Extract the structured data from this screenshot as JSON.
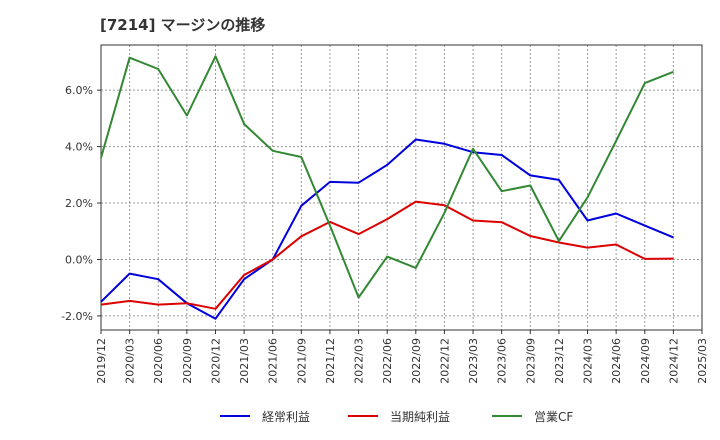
{
  "chart_data": {
    "type": "line",
    "title": "[7214]  マージンの推移",
    "xlabel": "",
    "ylabel": "",
    "ylim": [
      -2.5,
      7.6
    ],
    "y_ticks": [
      -2.0,
      0.0,
      2.0,
      4.0,
      6.0
    ],
    "y_tick_labels": [
      "-2.0%",
      "0.0%",
      "2.0%",
      "4.0%",
      "6.0%"
    ],
    "grid": true,
    "legend_position": "bottom",
    "categories": [
      "2019/12",
      "2020/03",
      "2020/06",
      "2020/09",
      "2020/12",
      "2021/03",
      "2021/06",
      "2021/09",
      "2021/12",
      "2022/03",
      "2022/06",
      "2022/09",
      "2022/12",
      "2023/03",
      "2023/06",
      "2023/09",
      "2023/12",
      "2024/03",
      "2024/06",
      "2024/09",
      "2024/12",
      "2025/03"
    ],
    "series": [
      {
        "name": "経常利益",
        "color": "#0000dd",
        "values": [
          -1.5,
          -0.5,
          -0.7,
          -1.55,
          -2.1,
          -0.7,
          0.0,
          1.9,
          2.75,
          2.72,
          3.35,
          4.25,
          4.1,
          3.8,
          3.7,
          2.98,
          2.82,
          1.38,
          1.63,
          1.2,
          0.78,
          null
        ]
      },
      {
        "name": "当期純利益",
        "color": "#dd0000",
        "values": [
          -1.6,
          -1.47,
          -1.6,
          -1.55,
          -1.75,
          -0.55,
          0.0,
          0.82,
          1.33,
          0.9,
          1.43,
          2.05,
          1.92,
          1.38,
          1.32,
          0.83,
          0.6,
          0.42,
          0.53,
          0.02,
          0.03,
          null
        ]
      },
      {
        "name": "営業CF",
        "color": "#338833",
        "values": [
          3.6,
          7.15,
          6.75,
          5.1,
          7.2,
          4.8,
          3.85,
          3.63,
          1.2,
          -1.35,
          0.1,
          -0.3,
          1.65,
          3.92,
          2.42,
          2.62,
          0.65,
          2.2,
          4.2,
          6.25,
          6.65,
          null
        ]
      }
    ]
  }
}
